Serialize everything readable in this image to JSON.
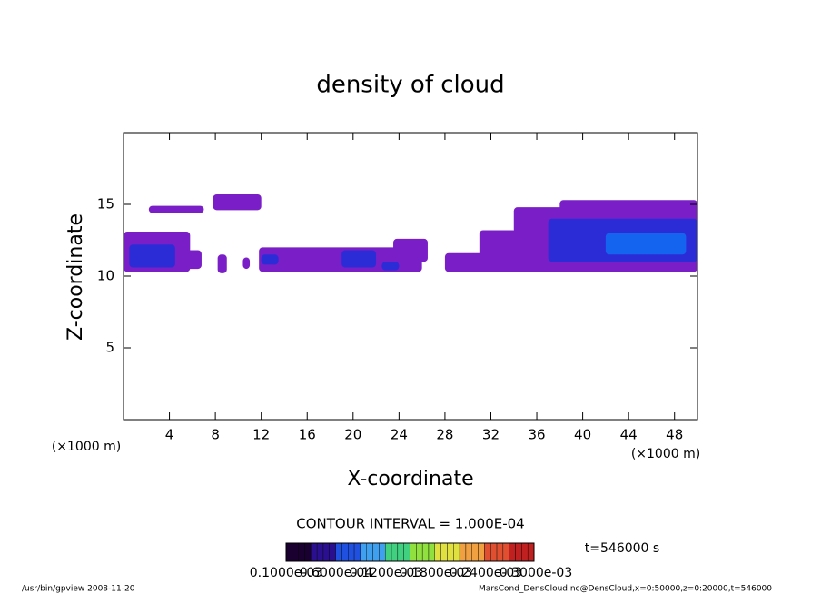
{
  "chart_data": {
    "type": "contour",
    "title": "density of cloud",
    "xlabel": "X-coordinate",
    "ylabel": "Z-coordinate",
    "x_unit": "(×1000 m)",
    "y_unit": "(×1000 m)",
    "xlim": [
      0,
      50
    ],
    "ylim": [
      0,
      20
    ],
    "xticks": [
      4,
      8,
      12,
      16,
      20,
      24,
      28,
      32,
      36,
      40,
      44,
      48
    ],
    "yticks": [
      5,
      10,
      15
    ],
    "contour_interval": "CONTOUR INTERVAL = 1.000E-04",
    "time_label": "t=546000 s",
    "levels": [
      0.0001,
      0.0002,
      0.0003
    ],
    "level_colors": [
      "#7a1ec8",
      "#2c2cd6",
      "#1464f0"
    ],
    "regions": [
      {
        "x": [
          0,
          5.8
        ],
        "z": [
          10.3,
          13.1
        ],
        "value": 0.0001
      },
      {
        "x": [
          5.4,
          6.8
        ],
        "z": [
          10.5,
          11.8
        ],
        "value": 0.0001
      },
      {
        "x": [
          2.2,
          7
        ],
        "z": [
          14.4,
          14.9
        ],
        "value": 0.0001
      },
      {
        "x": [
          7.8,
          12
        ],
        "z": [
          14.6,
          15.7
        ],
        "value": 0.0001
      },
      {
        "x": [
          8.2,
          9
        ],
        "z": [
          10.2,
          11.5
        ],
        "value": 0.0001
      },
      {
        "x": [
          10.4,
          11
        ],
        "z": [
          10.5,
          11.3
        ],
        "value": 0.0001
      },
      {
        "x": [
          11.8,
          26
        ],
        "z": [
          10.3,
          12
        ],
        "value": 0.0001
      },
      {
        "x": [
          23.5,
          26.5
        ],
        "z": [
          11,
          12.6
        ],
        "value": 0.0001
      },
      {
        "x": [
          28,
          50
        ],
        "z": [
          10.3,
          11.6
        ],
        "value": 0.0001
      },
      {
        "x": [
          31,
          50
        ],
        "z": [
          11,
          13.2
        ],
        "value": 0.0001
      },
      {
        "x": [
          34,
          50
        ],
        "z": [
          13,
          14.8
        ],
        "value": 0.0001
      },
      {
        "x": [
          38,
          50
        ],
        "z": [
          14.5,
          15.3
        ],
        "value": 0.0001
      },
      {
        "x": [
          0.5,
          4.5
        ],
        "z": [
          10.6,
          12.2
        ],
        "value": 0.0002
      },
      {
        "x": [
          12,
          13.5
        ],
        "z": [
          10.8,
          11.5
        ],
        "value": 0.0002
      },
      {
        "x": [
          19,
          22
        ],
        "z": [
          10.6,
          11.8
        ],
        "value": 0.0002
      },
      {
        "x": [
          22.5,
          24
        ],
        "z": [
          10.4,
          11
        ],
        "value": 0.0002
      },
      {
        "x": [
          37,
          50
        ],
        "z": [
          11,
          14
        ],
        "value": 0.0002
      },
      {
        "x": [
          42,
          49
        ],
        "z": [
          11.5,
          13
        ],
        "value": 0.0003
      }
    ],
    "colorbar_colors": [
      "#1a0030",
      "#2a1090",
      "#2050e0",
      "#40a0f0",
      "#40d080",
      "#90e040",
      "#e0e040",
      "#f0a040",
      "#e05030",
      "#c02020"
    ],
    "colorbar_labels": [
      "0.1000e-03",
      "0.6000e-04",
      "0.1200e-03",
      "0.1800e-03",
      "0.2400e-03",
      "0.3000e-03"
    ],
    "footer_left": "/usr/bin/gpview   2008-11-20",
    "footer_right": "MarsCond_DensCloud.nc@DensCloud,x=0:50000,z=0:20000,t=546000"
  }
}
